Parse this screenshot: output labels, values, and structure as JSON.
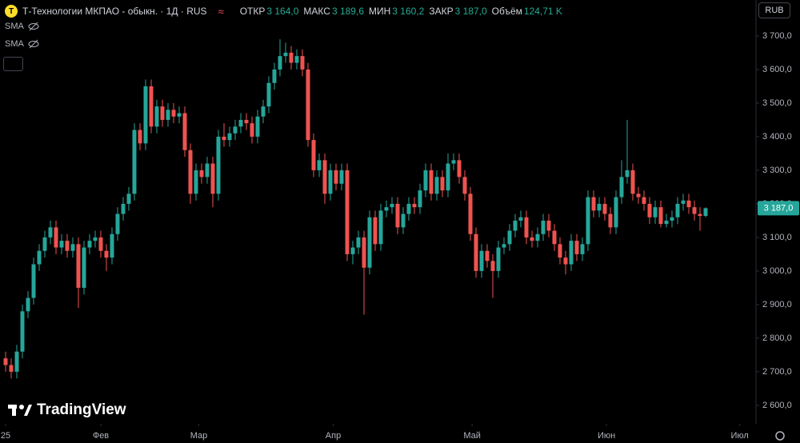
{
  "header": {
    "symbol_icon": "Т",
    "title": "Т-Технологии МКПАО - обыкн. · 1Д · RUS",
    "approx": "≈",
    "ohlc": [
      {
        "label": "ОТКР",
        "value": "3 164,0"
      },
      {
        "label": "МАКС",
        "value": "3 189,6"
      },
      {
        "label": "МИН",
        "value": "3 160,2"
      },
      {
        "label": "ЗАКР",
        "value": "3 187,0"
      },
      {
        "label": "Объём",
        "value": "124,71 K"
      }
    ]
  },
  "indicators": [
    "SMA",
    "SMA"
  ],
  "currency": "RUB",
  "branding": "TradingView",
  "chart_data": {
    "type": "candlestick",
    "up_color": "#26a69a",
    "down_color": "#ef5350",
    "xlim": [
      -1,
      134
    ],
    "xticks": [
      {
        "value": 0,
        "label": "25"
      },
      {
        "value": 17,
        "label": "Фев"
      },
      {
        "value": 34.5,
        "label": "Мар"
      },
      {
        "value": 58.5,
        "label": "Апр"
      },
      {
        "value": 83.3,
        "label": "Май"
      },
      {
        "value": 107.3,
        "label": "Июн"
      },
      {
        "value": 131.1,
        "label": "Июл"
      }
    ],
    "ylim": [
      2545,
      3807
    ],
    "yticks": [
      {
        "value": 2600,
        "label": "2 600,0"
      },
      {
        "value": 2700,
        "label": "2 700,0"
      },
      {
        "value": 2800,
        "label": "2 800,0"
      },
      {
        "value": 2900,
        "label": "2 900,0"
      },
      {
        "value": 3000,
        "label": "3 000,0"
      },
      {
        "value": 3100,
        "label": "3 100,0"
      },
      {
        "value": 3200,
        "label": "3 200,0"
      },
      {
        "value": 3300,
        "label": "3 300,0"
      },
      {
        "value": 3400,
        "label": "3 400,0"
      },
      {
        "value": 3500,
        "label": "3 500,0"
      },
      {
        "value": 3600,
        "label": "3 600,0"
      },
      {
        "value": 3700,
        "label": "3 700,0"
      }
    ],
    "grid": false,
    "last_price": {
      "value": 3187,
      "label": "3 187,0"
    },
    "open": [
      2740,
      2720,
      2700,
      2760,
      2880,
      2920,
      3020,
      3060,
      3100,
      3130,
      3070,
      3090,
      3060,
      3080,
      2950,
      3070,
      3090,
      3100,
      3060,
      3040,
      3110,
      3170,
      3200,
      3230,
      3420,
      3380,
      3550,
      3430,
      3490,
      3450,
      3480,
      3460,
      3470,
      3360,
      3230,
      3300,
      3280,
      3320,
      3230,
      3400,
      3390,
      3410,
      3430,
      3450,
      3440,
      3400,
      3460,
      3490,
      3560,
      3600,
      3640,
      3650,
      3620,
      3640,
      3600,
      3390,
      3300,
      3330,
      3230,
      3300,
      3260,
      3300,
      3050,
      3070,
      3100,
      3010,
      3160,
      3080,
      3180,
      3190,
      3200,
      3130,
      3170,
      3200,
      3190,
      3240,
      3300,
      3230,
      3280,
      3240,
      3320,
      3330,
      3280,
      3230,
      3110,
      3000,
      3060,
      3030,
      3000,
      3070,
      3080,
      3120,
      3150,
      3160,
      3100,
      3090,
      3110,
      3150,
      3120,
      3080,
      3040,
      3020,
      3090,
      3050,
      3080,
      3220,
      3180,
      3200,
      3170,
      3130,
      3220,
      3280,
      3300,
      3230,
      3220,
      3200,
      3160,
      3190,
      3140,
      3150,
      3160,
      3200,
      3210,
      3190,
      3170,
      3164
    ],
    "high": [
      2760,
      2740,
      2780,
      2900,
      2940,
      3040,
      3080,
      3120,
      3150,
      3150,
      3110,
      3110,
      3100,
      3100,
      3090,
      3110,
      3120,
      3120,
      3080,
      3130,
      3190,
      3220,
      3250,
      3440,
      3440,
      3570,
      3570,
      3510,
      3510,
      3500,
      3500,
      3490,
      3490,
      3380,
      3320,
      3320,
      3340,
      3340,
      3420,
      3440,
      3430,
      3450,
      3470,
      3470,
      3460,
      3480,
      3510,
      3580,
      3620,
      3690,
      3680,
      3670,
      3660,
      3660,
      3620,
      3410,
      3350,
      3350,
      3320,
      3320,
      3320,
      3320,
      3090,
      3120,
      3120,
      3180,
      3180,
      3200,
      3210,
      3220,
      3220,
      3190,
      3220,
      3220,
      3260,
      3320,
      3320,
      3300,
      3300,
      3350,
      3350,
      3350,
      3300,
      3250,
      3130,
      3080,
      3080,
      3050,
      3090,
      3100,
      3140,
      3170,
      3180,
      3180,
      3120,
      3130,
      3170,
      3170,
      3140,
      3100,
      3060,
      3110,
      3110,
      3100,
      3240,
      3240,
      3220,
      3220,
      3190,
      3240,
      3330,
      3450,
      3320,
      3250,
      3240,
      3220,
      3210,
      3210,
      3170,
      3180,
      3220,
      3230,
      3230,
      3210,
      3190,
      3189.6
    ],
    "low": [
      2700,
      2680,
      2680,
      2740,
      2860,
      2900,
      3000,
      3040,
      3080,
      3050,
      3050,
      3040,
      3040,
      2890,
      2930,
      3050,
      3070,
      3040,
      3000,
      3020,
      3090,
      3150,
      3180,
      3210,
      3360,
      3360,
      3410,
      3410,
      3430,
      3430,
      3440,
      3440,
      3340,
      3200,
      3210,
      3260,
      3260,
      3190,
      3210,
      3370,
      3370,
      3390,
      3410,
      3420,
      3380,
      3380,
      3440,
      3470,
      3540,
      3580,
      3620,
      3600,
      3600,
      3580,
      3370,
      3280,
      3280,
      3200,
      3210,
      3240,
      3240,
      3030,
      3020,
      3050,
      2870,
      2990,
      3060,
      3060,
      3160,
      3170,
      3110,
      3110,
      3150,
      3170,
      3170,
      3220,
      3210,
      3210,
      3220,
      3220,
      3300,
      3260,
      3210,
      3090,
      2980,
      2980,
      3010,
      2920,
      2980,
      3050,
      3060,
      3100,
      3130,
      3080,
      3070,
      3070,
      3090,
      3100,
      3060,
      3020,
      2990,
      3000,
      3030,
      3030,
      3060,
      3160,
      3160,
      3150,
      3110,
      3110,
      3200,
      3260,
      3210,
      3200,
      3180,
      3140,
      3140,
      3130,
      3130,
      3130,
      3140,
      3180,
      3170,
      3150,
      3120,
      3160.2
    ],
    "close": [
      2720,
      2700,
      2760,
      2880,
      2920,
      3020,
      3060,
      3100,
      3130,
      3070,
      3090,
      3060,
      3080,
      2950,
      3070,
      3090,
      3100,
      3060,
      3040,
      3110,
      3170,
      3200,
      3230,
      3420,
      3380,
      3550,
      3430,
      3490,
      3450,
      3480,
      3460,
      3470,
      3360,
      3230,
      3300,
      3280,
      3320,
      3230,
      3400,
      3390,
      3410,
      3430,
      3450,
      3440,
      3400,
      3460,
      3490,
      3560,
      3600,
      3640,
      3650,
      3620,
      3640,
      3600,
      3390,
      3300,
      3330,
      3230,
      3300,
      3260,
      3300,
      3050,
      3070,
      3100,
      3010,
      3160,
      3080,
      3180,
      3190,
      3200,
      3130,
      3170,
      3200,
      3190,
      3240,
      3300,
      3230,
      3280,
      3240,
      3320,
      3330,
      3280,
      3230,
      3110,
      3000,
      3060,
      3030,
      3000,
      3070,
      3080,
      3120,
      3150,
      3160,
      3100,
      3090,
      3110,
      3150,
      3120,
      3080,
      3040,
      3020,
      3090,
      3050,
      3080,
      3220,
      3180,
      3200,
      3170,
      3130,
      3220,
      3280,
      3300,
      3230,
      3220,
      3200,
      3160,
      3190,
      3140,
      3150,
      3160,
      3200,
      3210,
      3190,
      3170,
      3164,
      3187
    ]
  }
}
